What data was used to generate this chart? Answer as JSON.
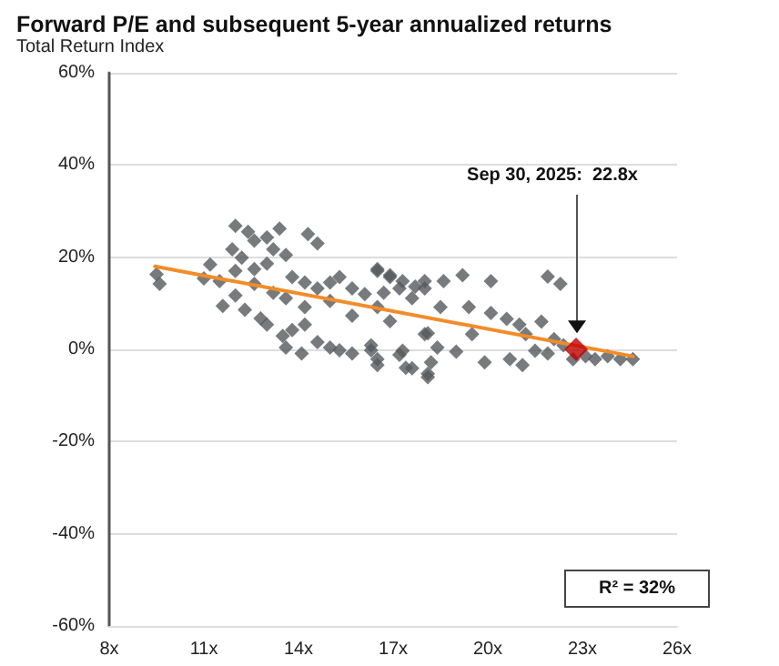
{
  "chart_data": {
    "type": "scatter",
    "title": "Forward P/E and subsequent 5-year annualized returns",
    "subtitle": "Total Return Index",
    "xlim": [
      8,
      26
    ],
    "xticks": [
      {
        "value": 8,
        "label": "8x"
      },
      {
        "value": 11,
        "label": "11x"
      },
      {
        "value": 14,
        "label": "14x"
      },
      {
        "value": 17,
        "label": "17x"
      },
      {
        "value": 20,
        "label": "20x"
      },
      {
        "value": 23,
        "label": "23x"
      },
      {
        "value": 26,
        "label": "26x"
      }
    ],
    "ylim": [
      -60,
      60
    ],
    "yticks": [
      {
        "value": -60,
        "label": "-60%"
      },
      {
        "value": -40,
        "label": "-40%"
      },
      {
        "value": -20,
        "label": "-20%"
      },
      {
        "value": 0,
        "label": "0%"
      },
      {
        "value": 20,
        "label": "20%"
      },
      {
        "value": 40,
        "label": "40%"
      },
      {
        "value": 60,
        "label": "60%"
      }
    ],
    "grid": "y",
    "marker": "diamond",
    "annotations": [
      "Sep 30, 2025:  22.8x",
      "R² = 32%"
    ],
    "series": [
      {
        "color": "#555a5e",
        "x": [
          9.5,
          9.6,
          11.2,
          11.0,
          12.0,
          12.4,
          12.6,
          13.0,
          13.4,
          13.2,
          11.9,
          12.2,
          14.3,
          14.6,
          13.6,
          11.6,
          12.0,
          11.5,
          12.6,
          13.2,
          12.3,
          12.8,
          13.0,
          13.5,
          13.8,
          14.2,
          13.6,
          14.1,
          14.6,
          15.0,
          15.3,
          15.7,
          16.3,
          16.5,
          17.2,
          17.4,
          18.1,
          18.2,
          13.8,
          14.2,
          14.6,
          15.0,
          15.3,
          15.7,
          16.1,
          16.5,
          16.9,
          17.2,
          15.7,
          16.5,
          16.9,
          17.6,
          18.0,
          18.1,
          13.6,
          14.2,
          15.0,
          12.6,
          13.0,
          12.0,
          16.5,
          16.9,
          17.3,
          16.7,
          17.7,
          18.0,
          18.6,
          19.2,
          20.1,
          21.9,
          22.3,
          18.5,
          19.4,
          20.1,
          20.6,
          21.0,
          21.7,
          21.2,
          18.0,
          19.5,
          16.3,
          17.3,
          18.4,
          19.0,
          19.9,
          20.7,
          21.1,
          21.5,
          21.9,
          22.1,
          22.4,
          22.7,
          23.1,
          23.4,
          23.8,
          24.2,
          24.6,
          18.1,
          17.6,
          16.5
        ],
        "values": [
          16.3,
          14.2,
          18.4,
          15.4,
          26.8,
          25.5,
          23.6,
          24.3,
          26.2,
          21.7,
          21.7,
          19.9,
          25,
          23,
          20.5,
          9.4,
          11.7,
          14.8,
          14.2,
          12.3,
          8.6,
          6.7,
          5.4,
          2.9,
          4.2,
          5.4,
          0.4,
          -0.9,
          1.6,
          0.4,
          -0.2,
          -0.9,
          -0.2,
          -2.1,
          -1.2,
          -4,
          -5.3,
          -2.8,
          15.7,
          14.5,
          13.2,
          14.5,
          15.7,
          13.2,
          12,
          17,
          15.7,
          13.2,
          7.3,
          9.2,
          6.1,
          11.1,
          13.2,
          3.5,
          11.1,
          9.2,
          10.5,
          17.4,
          18.6,
          17,
          17.4,
          16.1,
          14.8,
          12.3,
          13.6,
          14.8,
          14.8,
          16.1,
          14.8,
          15.8,
          14.2,
          9.2,
          9.2,
          7.9,
          6.6,
          5.4,
          6.0,
          3.3,
          3.3,
          3.3,
          0.9,
          -0.3,
          0.4,
          -0.5,
          -2.8,
          -2.1,
          -3.4,
          -0.3,
          -0.9,
          2.2,
          0.9,
          -2.1,
          -1.5,
          -2.1,
          -1.5,
          -2.1,
          -2.1,
          -6,
          -4.1,
          -3.4
        ]
      },
      {
        "type": "line",
        "color": "#f28c28",
        "marker": "none",
        "x": [
          9.45,
          24.6
        ],
        "values": [
          18,
          -1.5
        ]
      },
      {
        "type": "scatter",
        "color": "#c00000",
        "x": [
          22.8
        ],
        "values": [
          0
        ]
      }
    ]
  }
}
